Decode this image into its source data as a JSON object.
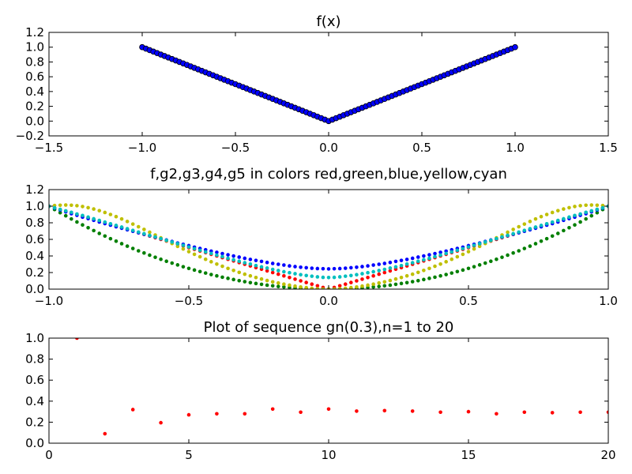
{
  "chart_data": [
    {
      "type": "scatter",
      "title": "f(x)",
      "xlim": [
        -1.5,
        1.5
      ],
      "ylim": [
        -0.2,
        1.2
      ],
      "xticks": [
        -1.5,
        -1.0,
        -0.5,
        0.0,
        0.5,
        1.0,
        1.5
      ],
      "yticks": [
        -0.2,
        0.0,
        0.2,
        0.4,
        0.6,
        0.8,
        1.0,
        1.2
      ],
      "xtick_labels": [
        "−1.5",
        "−1.0",
        "−0.5",
        "0.0",
        "0.5",
        "1.0",
        "1.5"
      ],
      "ytick_labels": [
        "−0.2",
        "0.0",
        "0.2",
        "0.4",
        "0.6",
        "0.8",
        "1.0",
        "1.2"
      ],
      "series": [
        {
          "color": "#0000ff",
          "edge_color": "#000000",
          "x": [
            -1.0,
            -0.98,
            -0.96,
            -0.94,
            -0.92,
            -0.9,
            -0.88,
            -0.86,
            -0.84,
            -0.82,
            -0.8,
            -0.78,
            -0.76,
            -0.74,
            -0.72,
            -0.7,
            -0.68,
            -0.66,
            -0.64,
            -0.62,
            -0.6,
            -0.58,
            -0.56,
            -0.54,
            -0.52,
            -0.5,
            -0.48,
            -0.46,
            -0.44,
            -0.42,
            -0.4,
            -0.38,
            -0.36,
            -0.34,
            -0.32,
            -0.3,
            -0.28,
            -0.26,
            -0.24,
            -0.22,
            -0.2,
            -0.18,
            -0.16,
            -0.14,
            -0.12,
            -0.1,
            -0.08,
            -0.06,
            -0.04,
            -0.02,
            0.0,
            0.02,
            0.04,
            0.06,
            0.08,
            0.1,
            0.12,
            0.14,
            0.16,
            0.18,
            0.2,
            0.22,
            0.24,
            0.26,
            0.28,
            0.3,
            0.32,
            0.34,
            0.36,
            0.38,
            0.4,
            0.42,
            0.44,
            0.46,
            0.48,
            0.5,
            0.52,
            0.54,
            0.56,
            0.58,
            0.6,
            0.62,
            0.64,
            0.66,
            0.68,
            0.7,
            0.72,
            0.74,
            0.76,
            0.78,
            0.8,
            0.82,
            0.84,
            0.86,
            0.88,
            0.9,
            0.92,
            0.94,
            0.96,
            0.98,
            1.0
          ],
          "y": [
            1.0,
            0.98,
            0.96,
            0.94,
            0.92,
            0.9,
            0.88,
            0.86,
            0.84,
            0.82,
            0.8,
            0.78,
            0.76,
            0.74,
            0.72,
            0.7,
            0.68,
            0.66,
            0.64,
            0.62,
            0.6,
            0.58,
            0.56,
            0.54,
            0.52,
            0.5,
            0.48,
            0.46,
            0.44,
            0.42,
            0.4,
            0.38,
            0.36,
            0.34,
            0.32,
            0.3,
            0.28,
            0.26,
            0.24,
            0.22,
            0.2,
            0.18,
            0.16,
            0.14,
            0.12,
            0.1,
            0.08,
            0.06,
            0.04,
            0.02,
            0.0,
            0.02,
            0.04,
            0.06,
            0.08,
            0.1,
            0.12,
            0.14,
            0.16,
            0.18,
            0.2,
            0.22,
            0.24,
            0.26,
            0.28,
            0.3,
            0.32,
            0.34,
            0.36,
            0.38,
            0.4,
            0.42,
            0.44,
            0.46,
            0.48,
            0.5,
            0.52,
            0.54,
            0.56,
            0.58,
            0.6,
            0.62,
            0.64,
            0.66,
            0.68,
            0.7,
            0.72,
            0.74,
            0.76,
            0.78,
            0.8,
            0.82,
            0.84,
            0.86,
            0.88,
            0.9,
            0.92,
            0.94,
            0.96,
            0.98,
            1.0
          ]
        }
      ]
    },
    {
      "type": "scatter",
      "title": "f,g2,g3,g4,g5 in colors red,green,blue,yellow,cyan",
      "xlim": [
        -1.0,
        1.0
      ],
      "ylim": [
        0.0,
        1.2
      ],
      "xticks": [
        -1.0,
        -0.5,
        0.0,
        0.5,
        1.0
      ],
      "yticks": [
        0.0,
        0.2,
        0.4,
        0.6,
        0.8,
        1.0,
        1.2
      ],
      "xtick_labels": [
        "−1.0",
        "−0.5",
        "0.0",
        "0.5",
        "1.0"
      ],
      "ytick_labels": [
        "0.0",
        "0.2",
        "0.4",
        "0.6",
        "0.8",
        "1.0",
        "1.2"
      ],
      "x": [
        -1.0,
        -0.98,
        -0.96,
        -0.94,
        -0.92,
        -0.9,
        -0.88,
        -0.86,
        -0.84,
        -0.82,
        -0.8,
        -0.78,
        -0.76,
        -0.74,
        -0.72,
        -0.7,
        -0.68,
        -0.66,
        -0.64,
        -0.62,
        -0.6,
        -0.58,
        -0.56,
        -0.54,
        -0.52,
        -0.5,
        -0.48,
        -0.46,
        -0.44,
        -0.42,
        -0.4,
        -0.38,
        -0.36,
        -0.34,
        -0.32,
        -0.3,
        -0.28,
        -0.26,
        -0.24,
        -0.22,
        -0.2,
        -0.18,
        -0.16,
        -0.14,
        -0.12,
        -0.1,
        -0.08,
        -0.06,
        -0.04,
        -0.02,
        0.0,
        0.02,
        0.04,
        0.06,
        0.08,
        0.1,
        0.12,
        0.14,
        0.16,
        0.18,
        0.2,
        0.22,
        0.24,
        0.26,
        0.28,
        0.3,
        0.32,
        0.34,
        0.36,
        0.38,
        0.4,
        0.42,
        0.44,
        0.46,
        0.48,
        0.5,
        0.52,
        0.54,
        0.56,
        0.58,
        0.6,
        0.62,
        0.64,
        0.66,
        0.68,
        0.7,
        0.72,
        0.74,
        0.76,
        0.78,
        0.8,
        0.82,
        0.84,
        0.86,
        0.88,
        0.9,
        0.92,
        0.94,
        0.96,
        0.98,
        1.0
      ],
      "series": [
        {
          "color": "#ff0000",
          "y": [
            1.0,
            0.98,
            0.96,
            0.94,
            0.92,
            0.9,
            0.88,
            0.86,
            0.84,
            0.82,
            0.8,
            0.78,
            0.76,
            0.74,
            0.72,
            0.7,
            0.68,
            0.66,
            0.64,
            0.62,
            0.6,
            0.58,
            0.56,
            0.54,
            0.52,
            0.5,
            0.48,
            0.46,
            0.44,
            0.42,
            0.4,
            0.38,
            0.36,
            0.34,
            0.32,
            0.3,
            0.28,
            0.26,
            0.24,
            0.22,
            0.2,
            0.18,
            0.16,
            0.14,
            0.12,
            0.1,
            0.08,
            0.06,
            0.04,
            0.02,
            0.0,
            0.02,
            0.04,
            0.06,
            0.08,
            0.1,
            0.12,
            0.14,
            0.16,
            0.18,
            0.2,
            0.22,
            0.24,
            0.26,
            0.28,
            0.3,
            0.32,
            0.34,
            0.36,
            0.38,
            0.4,
            0.42,
            0.44,
            0.46,
            0.48,
            0.5,
            0.52,
            0.54,
            0.56,
            0.58,
            0.6,
            0.62,
            0.64,
            0.66,
            0.68,
            0.7,
            0.72,
            0.74,
            0.76,
            0.78,
            0.8,
            0.82,
            0.84,
            0.86,
            0.88,
            0.9,
            0.92,
            0.94,
            0.96,
            0.98,
            1.0
          ]
        },
        {
          "color": "#007f00",
          "y": [
            1.0,
            0.96,
            0.922,
            0.884,
            0.846,
            0.81,
            0.774,
            0.74,
            0.706,
            0.672,
            0.64,
            0.608,
            0.578,
            0.548,
            0.518,
            0.49,
            0.462,
            0.436,
            0.41,
            0.384,
            0.36,
            0.336,
            0.314,
            0.292,
            0.27,
            0.25,
            0.23,
            0.212,
            0.194,
            0.176,
            0.16,
            0.144,
            0.13,
            0.116,
            0.102,
            0.09,
            0.078,
            0.068,
            0.058,
            0.048,
            0.04,
            0.032,
            0.026,
            0.02,
            0.014,
            0.01,
            0.006,
            0.004,
            0.002,
            0.0,
            0.0,
            0.0,
            0.002,
            0.004,
            0.006,
            0.01,
            0.014,
            0.02,
            0.026,
            0.032,
            0.04,
            0.048,
            0.058,
            0.068,
            0.078,
            0.09,
            0.102,
            0.116,
            0.13,
            0.144,
            0.16,
            0.176,
            0.194,
            0.212,
            0.23,
            0.25,
            0.27,
            0.292,
            0.314,
            0.336,
            0.36,
            0.384,
            0.41,
            0.436,
            0.462,
            0.49,
            0.518,
            0.548,
            0.578,
            0.608,
            0.64,
            0.672,
            0.706,
            0.74,
            0.774,
            0.81,
            0.846,
            0.884,
            0.922,
            0.96,
            1.0
          ]
        },
        {
          "color": "#0000ff",
          "y": [
            1.0,
            0.976,
            0.954,
            0.932,
            0.91,
            0.89,
            0.868,
            0.85,
            0.83,
            0.81,
            0.79,
            0.772,
            0.752,
            0.734,
            0.716,
            0.698,
            0.68,
            0.662,
            0.644,
            0.626,
            0.608,
            0.592,
            0.574,
            0.556,
            0.54,
            0.524,
            0.506,
            0.49,
            0.474,
            0.458,
            0.444,
            0.428,
            0.414,
            0.4,
            0.386,
            0.372,
            0.358,
            0.346,
            0.334,
            0.322,
            0.31,
            0.3,
            0.29,
            0.28,
            0.272,
            0.264,
            0.258,
            0.252,
            0.248,
            0.246,
            0.244,
            0.246,
            0.248,
            0.252,
            0.258,
            0.264,
            0.272,
            0.28,
            0.29,
            0.3,
            0.31,
            0.322,
            0.334,
            0.346,
            0.358,
            0.372,
            0.386,
            0.4,
            0.414,
            0.428,
            0.444,
            0.458,
            0.474,
            0.49,
            0.506,
            0.524,
            0.54,
            0.556,
            0.574,
            0.592,
            0.608,
            0.626,
            0.644,
            0.662,
            0.68,
            0.698,
            0.716,
            0.734,
            0.752,
            0.772,
            0.79,
            0.81,
            0.83,
            0.85,
            0.868,
            0.89,
            0.91,
            0.932,
            0.954,
            0.976,
            1.0
          ]
        },
        {
          "color": "#bfbf00",
          "y": [
            1.0,
            1.008,
            1.012,
            1.014,
            1.012,
            1.006,
            0.996,
            0.982,
            0.966,
            0.946,
            0.924,
            0.9,
            0.874,
            0.846,
            0.816,
            0.784,
            0.752,
            0.72,
            0.686,
            0.652,
            0.618,
            0.584,
            0.55,
            0.516,
            0.484,
            0.452,
            0.42,
            0.39,
            0.36,
            0.33,
            0.302,
            0.276,
            0.25,
            0.226,
            0.202,
            0.18,
            0.16,
            0.14,
            0.122,
            0.104,
            0.088,
            0.074,
            0.06,
            0.048,
            0.036,
            0.026,
            0.018,
            0.01,
            0.004,
            0.0,
            0.0,
            0.0,
            0.004,
            0.01,
            0.018,
            0.026,
            0.036,
            0.048,
            0.06,
            0.074,
            0.088,
            0.104,
            0.122,
            0.14,
            0.16,
            0.18,
            0.202,
            0.226,
            0.25,
            0.276,
            0.302,
            0.33,
            0.36,
            0.39,
            0.42,
            0.452,
            0.484,
            0.516,
            0.55,
            0.584,
            0.618,
            0.652,
            0.686,
            0.72,
            0.752,
            0.784,
            0.816,
            0.846,
            0.874,
            0.9,
            0.924,
            0.946,
            0.966,
            0.982,
            0.996,
            1.006,
            1.012,
            1.014,
            1.012,
            1.008,
            1.0
          ]
        },
        {
          "color": "#00bfbf",
          "y": [
            1.0,
            0.98,
            0.962,
            0.944,
            0.926,
            0.906,
            0.888,
            0.868,
            0.848,
            0.828,
            0.808,
            0.788,
            0.768,
            0.748,
            0.728,
            0.708,
            0.688,
            0.668,
            0.648,
            0.628,
            0.608,
            0.588,
            0.568,
            0.548,
            0.528,
            0.508,
            0.488,
            0.468,
            0.448,
            0.43,
            0.41,
            0.392,
            0.372,
            0.354,
            0.336,
            0.318,
            0.302,
            0.284,
            0.268,
            0.254,
            0.238,
            0.224,
            0.21,
            0.198,
            0.186,
            0.174,
            0.164,
            0.156,
            0.148,
            0.142,
            0.14,
            0.142,
            0.148,
            0.156,
            0.164,
            0.174,
            0.186,
            0.198,
            0.21,
            0.224,
            0.238,
            0.254,
            0.268,
            0.284,
            0.302,
            0.318,
            0.336,
            0.354,
            0.372,
            0.392,
            0.41,
            0.43,
            0.448,
            0.468,
            0.488,
            0.508,
            0.528,
            0.548,
            0.568,
            0.588,
            0.608,
            0.628,
            0.648,
            0.668,
            0.688,
            0.708,
            0.728,
            0.748,
            0.768,
            0.788,
            0.808,
            0.828,
            0.848,
            0.868,
            0.888,
            0.906,
            0.926,
            0.944,
            0.962,
            0.98,
            1.0
          ]
        }
      ]
    },
    {
      "type": "scatter",
      "title": "Plot of sequence gn(0.3),n=1 to 20",
      "xlim": [
        0,
        20
      ],
      "ylim": [
        0.0,
        1.0
      ],
      "xticks": [
        0,
        5,
        10,
        15,
        20
      ],
      "yticks": [
        0.0,
        0.2,
        0.4,
        0.6,
        0.8,
        1.0
      ],
      "xtick_labels": [
        "0",
        "5",
        "10",
        "15",
        "20"
      ],
      "ytick_labels": [
        "0.0",
        "0.2",
        "0.4",
        "0.6",
        "0.8",
        "1.0"
      ],
      "series": [
        {
          "color": "#ff0000",
          "x": [
            1,
            2,
            3,
            4,
            5,
            6,
            7,
            8,
            9,
            10,
            11,
            12,
            13,
            14,
            15,
            16,
            17,
            18,
            19,
            20
          ],
          "y": [
            1.0,
            0.09,
            0.32,
            0.195,
            0.27,
            0.28,
            0.28,
            0.325,
            0.295,
            0.325,
            0.305,
            0.31,
            0.305,
            0.295,
            0.3,
            0.28,
            0.295,
            0.29,
            0.295,
            0.295
          ]
        }
      ]
    }
  ]
}
